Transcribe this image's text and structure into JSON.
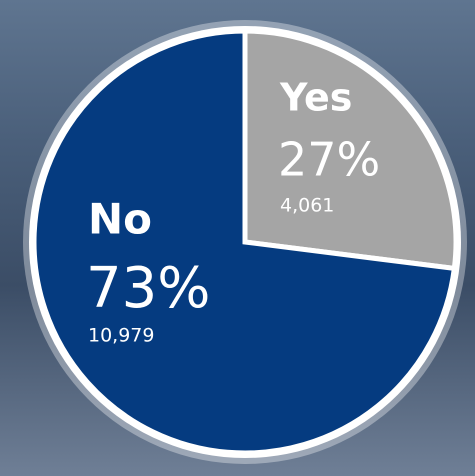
{
  "chart_data": {
    "type": "pie",
    "categories": [
      "Yes",
      "No"
    ],
    "values": [
      27,
      73
    ],
    "value_labels": [
      "27%",
      "73%"
    ],
    "counts": [
      "4,061",
      "10,979"
    ],
    "colors": [
      "#a5a5a5",
      "#053b80"
    ]
  }
}
